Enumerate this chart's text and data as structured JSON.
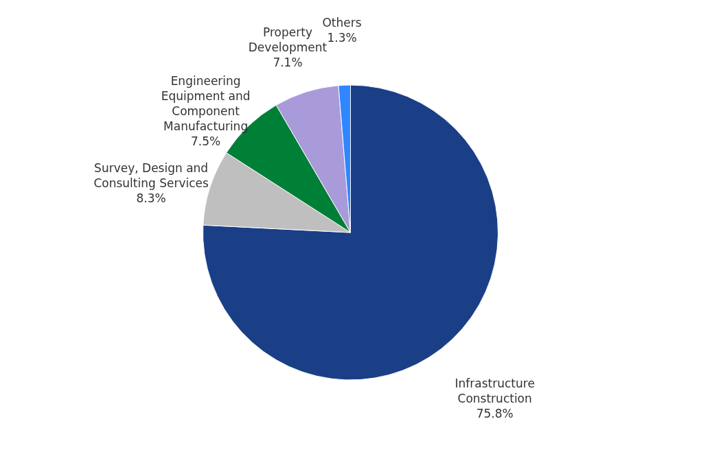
{
  "chart_data": {
    "type": "pie",
    "categories": [
      "Infrastructure Construction",
      "Survey, Design and Consulting Services",
      "Engineering Equipment and Component Manufacturing",
      "Property Development",
      "Others"
    ],
    "values": [
      75.8,
      8.3,
      7.5,
      7.1,
      1.3
    ],
    "value_labels": [
      "75.8%",
      "8.3%",
      "7.5%",
      "7.1%",
      "1.3%"
    ],
    "colors": [
      "#1a3f87",
      "#bfbfbf",
      "#007f37",
      "#a99ad9",
      "#2f86ff"
    ]
  }
}
